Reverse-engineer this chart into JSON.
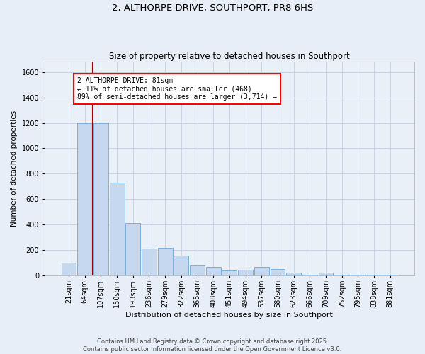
{
  "title": "2, ALTHORPE DRIVE, SOUTHPORT, PR8 6HS",
  "subtitle": "Size of property relative to detached houses in Southport",
  "xlabel": "Distribution of detached houses by size in Southport",
  "ylabel": "Number of detached properties",
  "categories": [
    "21sqm",
    "64sqm",
    "107sqm",
    "150sqm",
    "193sqm",
    "236sqm",
    "279sqm",
    "322sqm",
    "365sqm",
    "408sqm",
    "451sqm",
    "494sqm",
    "537sqm",
    "580sqm",
    "623sqm",
    "666sqm",
    "709sqm",
    "752sqm",
    "795sqm",
    "838sqm",
    "881sqm"
  ],
  "values": [
    100,
    1200,
    1200,
    730,
    415,
    215,
    220,
    160,
    80,
    70,
    40,
    45,
    70,
    50,
    25,
    10,
    25,
    10,
    5,
    8,
    5
  ],
  "bar_color": "#c5d8ef",
  "bar_edge_color": "#6fa8d0",
  "vline_x_bar_idx": 1.5,
  "annotation_text": "2 ALTHORPE DRIVE: 81sqm\n← 11% of detached houses are smaller (468)\n89% of semi-detached houses are larger (3,714) →",
  "annotation_box_color": "white",
  "annotation_box_edge": "red",
  "vline_color": "#990000",
  "ylim": [
    0,
    1680
  ],
  "yticks": [
    0,
    200,
    400,
    600,
    800,
    1000,
    1200,
    1400,
    1600
  ],
  "footer1": "Contains HM Land Registry data © Crown copyright and database right 2025.",
  "footer2": "Contains public sector information licensed under the Open Government Licence v3.0.",
  "outer_bg_color": "#e8eef7",
  "plot_bg_color": "#eaf0f8",
  "grid_color": "#c8d4e8"
}
